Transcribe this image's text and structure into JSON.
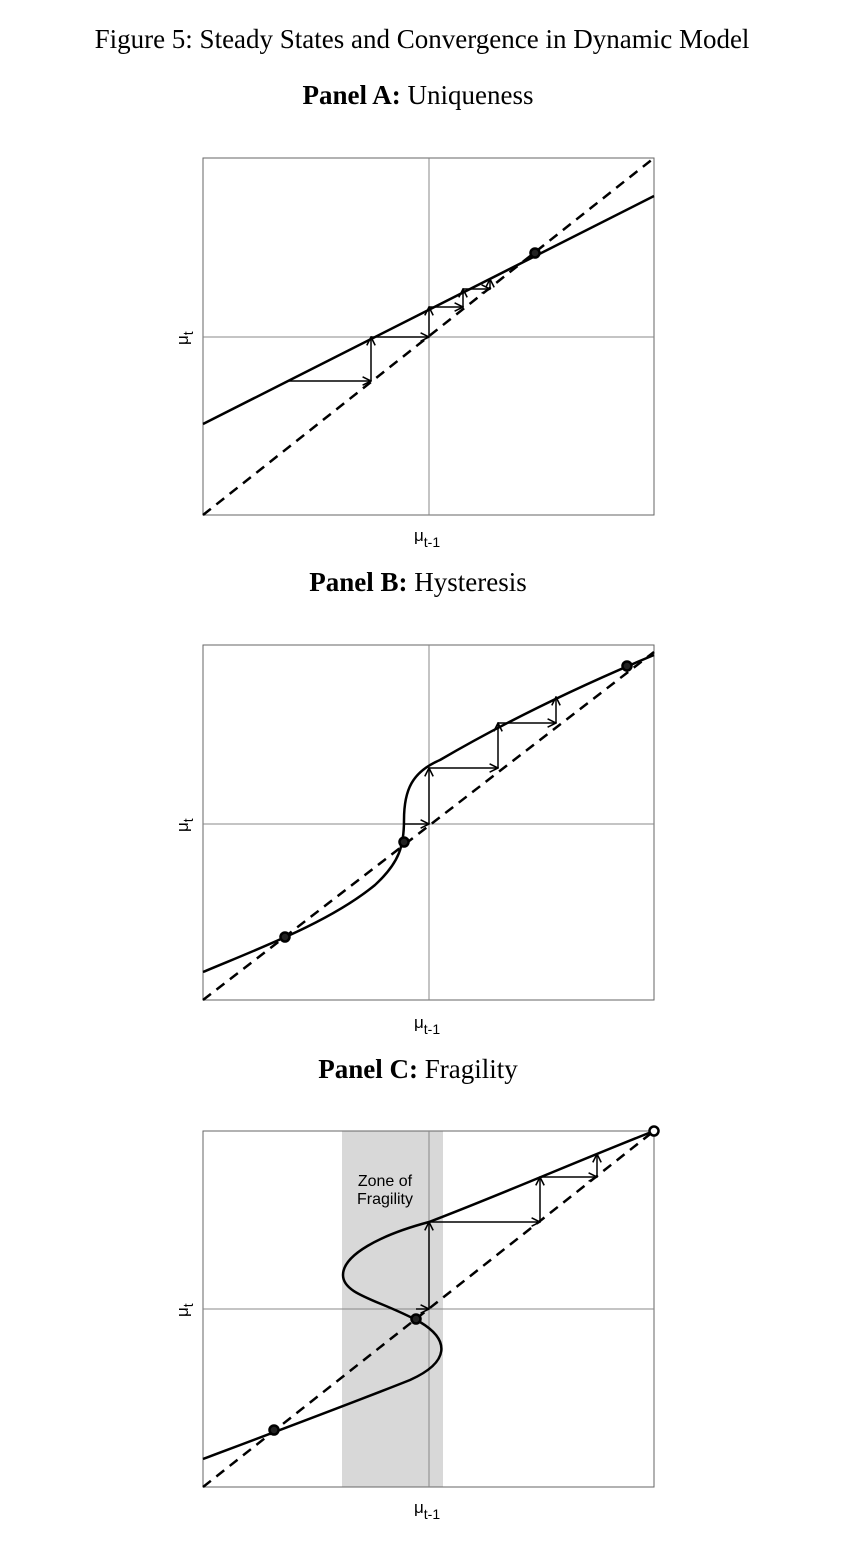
{
  "figure": {
    "title": "Figure 5: Steady States and Convergence in Dynamic Model",
    "panels": [
      {
        "label": "Panel A:",
        "name": "Uniqueness",
        "y_label": "μ",
        "y_sub": "t",
        "x_label": "μ",
        "x_sub": "t-1"
      },
      {
        "label": "Panel B:",
        "name": "Hysteresis",
        "y_label": "μ",
        "y_sub": "t",
        "x_label": "μ",
        "x_sub": "t-1"
      },
      {
        "label": "Panel C:",
        "name": "Fragility",
        "y_label": "μ",
        "y_sub": "t",
        "x_label": "μ",
        "x_sub": "t-1"
      }
    ],
    "annotation": [
      "Zone of",
      "Fragility"
    ]
  }
}
